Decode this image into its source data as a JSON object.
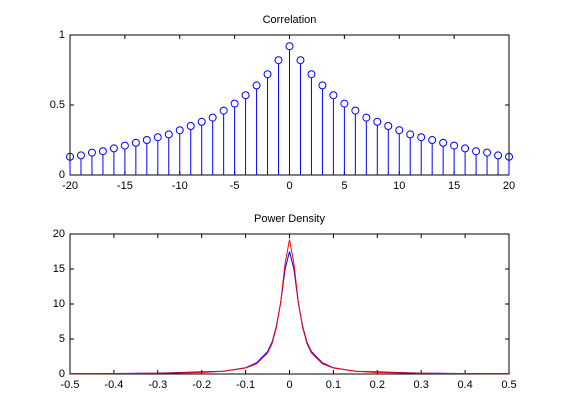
{
  "chart_data": [
    {
      "type": "stem",
      "title": "Correlation",
      "color": "#0000ff",
      "x": [
        -20,
        -19,
        -18,
        -17,
        -16,
        -15,
        -14,
        -13,
        -12,
        -11,
        -10,
        -9,
        -8,
        -7,
        -6,
        -5,
        -4,
        -3,
        -2,
        -1,
        0,
        1,
        2,
        3,
        4,
        5,
        6,
        7,
        8,
        9,
        10,
        11,
        12,
        13,
        14,
        15,
        16,
        17,
        18,
        19,
        20
      ],
      "values": [
        0.13,
        0.14,
        0.16,
        0.17,
        0.19,
        0.21,
        0.23,
        0.25,
        0.27,
        0.29,
        0.32,
        0.35,
        0.38,
        0.41,
        0.46,
        0.51,
        0.57,
        0.64,
        0.72,
        0.82,
        0.92,
        0.82,
        0.72,
        0.64,
        0.57,
        0.51,
        0.46,
        0.41,
        0.38,
        0.35,
        0.32,
        0.29,
        0.27,
        0.25,
        0.23,
        0.21,
        0.19,
        0.17,
        0.16,
        0.14,
        0.13
      ],
      "xlim": [
        -20,
        20
      ],
      "xticks": [
        -20,
        -15,
        -10,
        -5,
        0,
        5,
        10,
        15,
        20
      ],
      "ylim": [
        0,
        1
      ],
      "yticks": [
        0,
        0.5,
        1
      ]
    },
    {
      "type": "line",
      "title": "Power Density",
      "x": [
        -0.5,
        -0.4,
        -0.3,
        -0.2,
        -0.15,
        -0.1,
        -0.075,
        -0.05,
        -0.04,
        -0.03,
        -0.02,
        -0.01,
        0,
        0.01,
        0.02,
        0.03,
        0.04,
        0.05,
        0.075,
        0.1,
        0.15,
        0.2,
        0.3,
        0.4,
        0.5
      ],
      "series": [
        {
          "color": "#0000ff",
          "values": [
            0.05,
            0.08,
            0.12,
            0.3,
            0.4,
            0.9,
            1.6,
            3.2,
            4.5,
            6.8,
            10.2,
            15.0,
            17.5,
            15.0,
            10.2,
            6.8,
            4.5,
            3.2,
            1.6,
            0.9,
            0.4,
            0.3,
            0.12,
            0.08,
            0.05
          ]
        },
        {
          "color": "#ff0000",
          "values": [
            0.04,
            0.06,
            0.1,
            0.22,
            0.39,
            0.85,
            1.45,
            3.0,
            4.3,
            6.6,
            10.3,
            15.8,
            19.2,
            15.8,
            10.3,
            6.6,
            4.3,
            3.0,
            1.45,
            0.85,
            0.39,
            0.22,
            0.1,
            0.06,
            0.04
          ]
        }
      ],
      "xlim": [
        -0.5,
        0.5
      ],
      "xticks": [
        -0.5,
        -0.4,
        -0.3,
        -0.2,
        -0.1,
        0,
        0.1,
        0.2,
        0.3,
        0.4,
        0.5
      ],
      "ylim": [
        0,
        20
      ],
      "yticks": [
        0,
        5,
        10,
        15,
        20
      ]
    }
  ]
}
